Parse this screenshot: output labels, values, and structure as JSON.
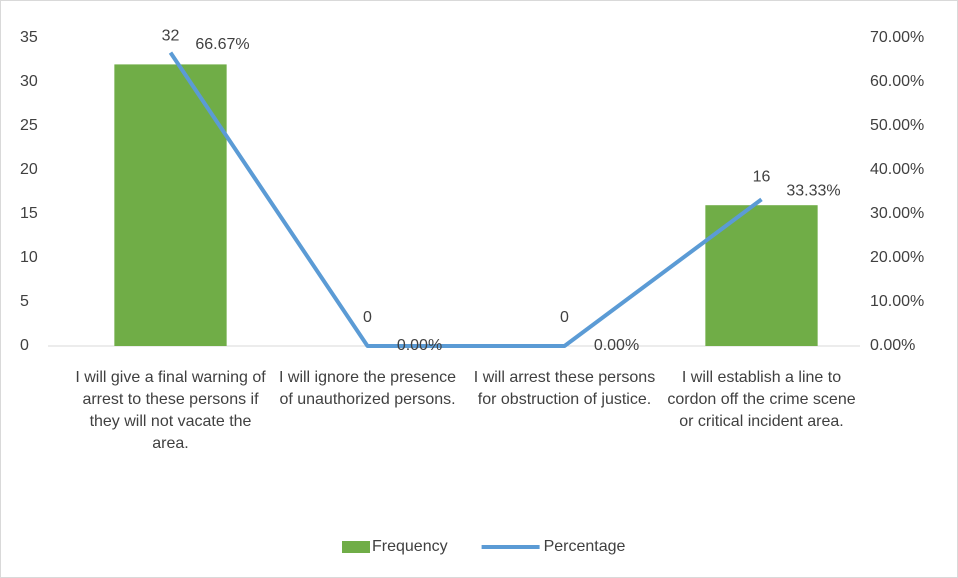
{
  "chart_data": {
    "type": "bar",
    "categories": [
      "I will give a final warning of arrest to these persons if they will not vacate the area.",
      "I will ignore the presence of unauthorized persons.",
      "I will arrest these persons for obstruction of justice.",
      "I will establish a line to cordon off the crime scene or critical incident area."
    ],
    "series": [
      {
        "name": "Frequency",
        "type": "bar",
        "color": "#70ad47",
        "values": [
          32,
          0,
          0,
          16
        ]
      },
      {
        "name": "Percentage",
        "type": "line",
        "axis": "y2",
        "color": "#5b9bd5",
        "values": [
          66.67,
          0,
          0,
          33.33
        ],
        "value_labels": [
          "66.67%",
          "0.00%",
          "0.00%",
          "33.33%"
        ]
      }
    ],
    "ylim": [
      0,
      35
    ],
    "yticks": [
      0,
      5,
      10,
      15,
      20,
      25,
      30,
      35
    ],
    "y2lim": [
      0,
      70
    ],
    "y2ticks": [
      {
        "value": 0,
        "label": "0.00%"
      },
      {
        "value": 10,
        "label": "10.00%"
      },
      {
        "value": 20,
        "label": "20.00%"
      },
      {
        "value": 30,
        "label": "30.00%"
      },
      {
        "value": 40,
        "label": "40.00%"
      },
      {
        "value": 50,
        "label": "50.00%"
      },
      {
        "value": 60,
        "label": "60.00%"
      },
      {
        "value": 70,
        "label": "70.00%"
      }
    ],
    "grid": false,
    "legend": "bottom"
  }
}
